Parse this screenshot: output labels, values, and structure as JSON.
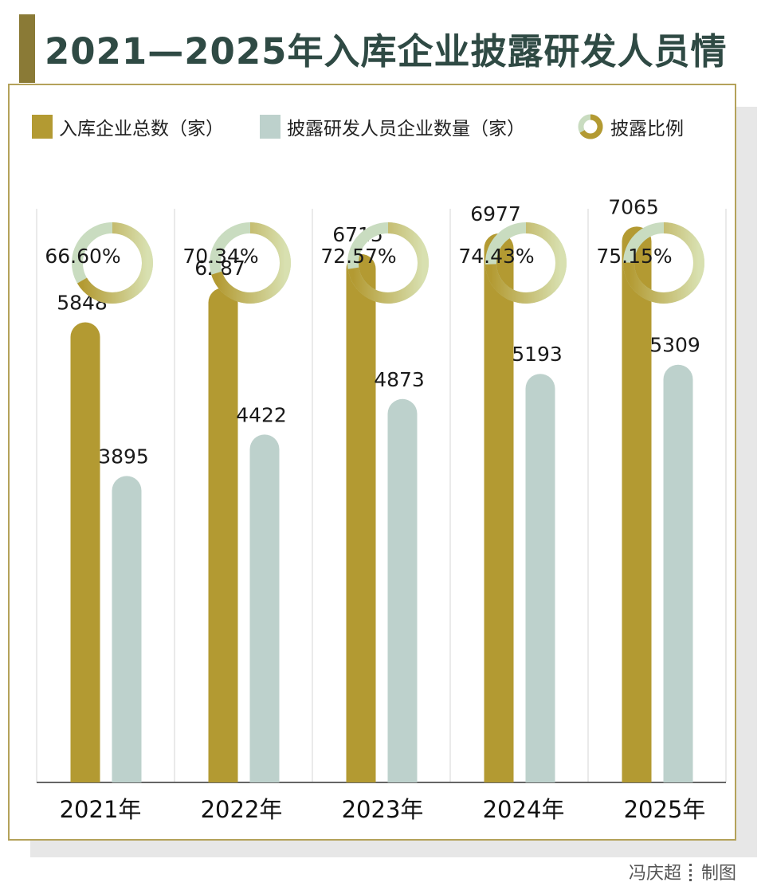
{
  "title": "2021—2025年入库企业披露研发人员情",
  "credit": {
    "author": "冯庆超",
    "role": "制图"
  },
  "colors": {
    "accent": "#2f4a44",
    "total_bar": "#b39a32",
    "disclosed_bar": "#bdd1cc",
    "ring_dark": "#b39a32",
    "ring_light": "#c9dcc0",
    "frame": "#b4a25a"
  },
  "chart_data": {
    "type": "bar",
    "title": "2021—2025年入库企业披露研发人员情",
    "categories": [
      "2021年",
      "2022年",
      "2023年",
      "2024年",
      "2025年"
    ],
    "series": [
      {
        "name": "入库企业总数（家）",
        "values": [
          5848,
          6287,
          6715,
          6977,
          7065
        ]
      },
      {
        "name": "披露研发人员企业数量（家）",
        "values": [
          3895,
          4422,
          4873,
          5193,
          5309
        ]
      }
    ],
    "ratio": {
      "name": "披露比例",
      "values": [
        66.6,
        70.34,
        72.57,
        74.43,
        75.15
      ],
      "labels": [
        "66.60%",
        "70.34%",
        "72.57%",
        "74.43%",
        "75.15%"
      ]
    },
    "ylim": [
      0,
      8000
    ],
    "legend_position": "top",
    "grid": false
  }
}
